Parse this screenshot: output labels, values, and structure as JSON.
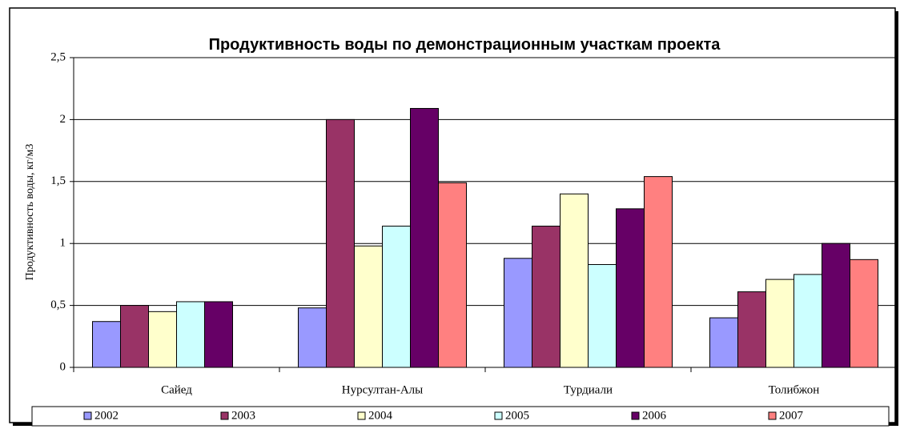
{
  "chart_data": {
    "type": "bar",
    "title": "Продуктивность воды по демонстрационным участкам проекта",
    "y_label": "Продуктивность воды, кг/м3",
    "categories": [
      "Сайед",
      "Нурсултан-Алы",
      "Турдиали",
      "Толибжон"
    ],
    "series": [
      {
        "name": "2002",
        "color": "#9999ff",
        "values": [
          0.37,
          0.48,
          0.88,
          0.4
        ]
      },
      {
        "name": "2003",
        "color": "#993366",
        "values": [
          0.5,
          2.0,
          1.14,
          0.61
        ]
      },
      {
        "name": "2004",
        "color": "#ffffcc",
        "values": [
          0.45,
          0.98,
          1.4,
          0.71
        ]
      },
      {
        "name": "2005",
        "color": "#ccffff",
        "values": [
          0.53,
          1.14,
          0.83,
          0.75
        ]
      },
      {
        "name": "2006",
        "color": "#660066",
        "values": [
          0.53,
          2.09,
          1.28,
          1.0
        ]
      },
      {
        "name": "2007",
        "color": "#ff8080",
        "values": [
          null,
          1.49,
          1.54,
          0.87
        ]
      }
    ],
    "ylim": [
      0,
      2.5
    ],
    "yticks": [
      0,
      {
        "value": 0.5,
        "label": "0,5"
      },
      1,
      {
        "value": 1.5,
        "label": "1,5"
      },
      2,
      {
        "value": 2.5,
        "label": "2,5"
      }
    ],
    "grid": true,
    "legend": "bottom"
  }
}
